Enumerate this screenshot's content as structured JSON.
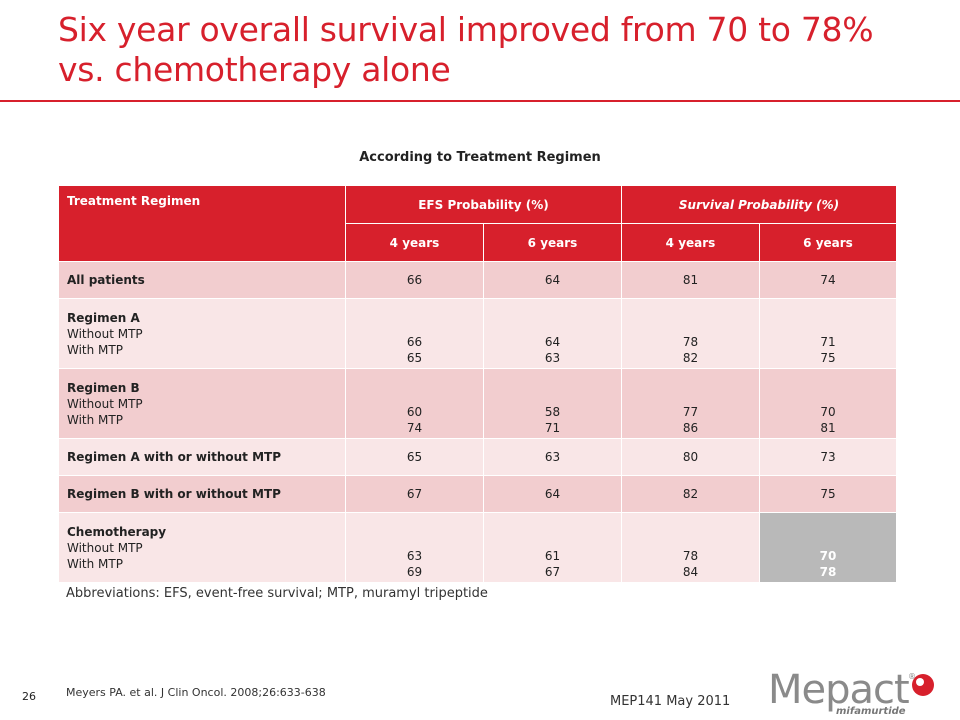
{
  "slide": {
    "title_line1": "Six year overall survival improved from 70 to 78%",
    "title_line2": "vs. chemotherapy alone",
    "subtitle": "According to Treatment Regimen",
    "abbreviations": "Abbreviations: EFS, event-free survival; MTP, muramyl tripeptide",
    "page_number": "26",
    "reference": "Meyers PA. et al. J Clin Oncol. 2008;26:633-638",
    "code": "MEP141 May 2011"
  },
  "logo": {
    "wordmark": "Mepact",
    "registered": "®",
    "tagline": "mifamurtide"
  },
  "table": {
    "headers": {
      "regimen": "Treatment Regimen",
      "efs": "EFS Probability (%)",
      "survival": "Survival Probability (%)",
      "sub": [
        "4 years",
        "6 years",
        "4 years",
        "6 years"
      ]
    },
    "rows": [
      {
        "title": "All patients",
        "values": [
          "66",
          "64",
          "81",
          "74"
        ]
      },
      {
        "title": "Regimen A",
        "sub1": "Without MTP",
        "sub2": "With MTP",
        "v1": [
          "66",
          "64",
          "78",
          "71"
        ],
        "v2": [
          "65",
          "63",
          "82",
          "75"
        ]
      },
      {
        "title": "Regimen B",
        "sub1": "Without MTP",
        "sub2": "With MTP",
        "v1": [
          "60",
          "58",
          "77",
          "70"
        ],
        "v2": [
          "74",
          "71",
          "86",
          "81"
        ]
      },
      {
        "title": "Regimen A with or without MTP",
        "values": [
          "65",
          "63",
          "80",
          "73"
        ]
      },
      {
        "title": "Regimen B with or without MTP",
        "values": [
          "67",
          "64",
          "82",
          "75"
        ]
      },
      {
        "title": "Chemotherapy",
        "sub1": "Without MTP",
        "sub2": "With MTP",
        "v1": [
          "63",
          "61",
          "78",
          "70"
        ],
        "v2": [
          "69",
          "67",
          "84",
          "78"
        ]
      }
    ]
  },
  "colors": {
    "accent": "#d7202c",
    "row_dark": "#f2cdcf",
    "row_light": "#f9e6e7",
    "highlight": "#b9b9b9"
  }
}
